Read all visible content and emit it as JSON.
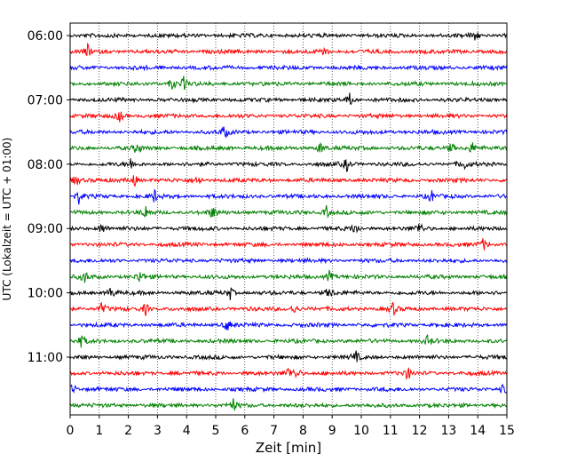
{
  "chart_data": {
    "type": "line",
    "title": "",
    "xlabel": "Zeit  [min]",
    "ylabel": "UTC (Lokalzeit = UTC + 01:00)",
    "xlim": [
      0,
      15
    ],
    "x_ticks": [
      "0",
      "1",
      "2",
      "3",
      "4",
      "5",
      "6",
      "7",
      "8",
      "9",
      "10",
      "11",
      "12",
      "13",
      "14",
      "15"
    ],
    "y_tick_labels": [
      "06:00",
      "07:00",
      "08:00",
      "09:00",
      "10:00",
      "11:00"
    ],
    "grid": "vertical dotted at each minute",
    "trace_interval_minutes": 15,
    "colors_cycle": [
      "#000000",
      "#ff0000",
      "#0000ff",
      "#008000"
    ],
    "series": [
      {
        "start": "06:00",
        "color": "#000000",
        "events_min": [
          13.9
        ]
      },
      {
        "start": "06:15",
        "color": "#ff0000",
        "events_min": [
          0.6,
          8.7
        ]
      },
      {
        "start": "06:30",
        "color": "#0000ff",
        "events_min": []
      },
      {
        "start": "06:45",
        "color": "#008000",
        "events_min": [
          3.5,
          3.9
        ]
      },
      {
        "start": "07:00",
        "color": "#000000",
        "events_min": [
          9.6
        ]
      },
      {
        "start": "07:15",
        "color": "#ff0000",
        "events_min": [
          1.7
        ]
      },
      {
        "start": "07:30",
        "color": "#0000ff",
        "events_min": [
          5.3
        ]
      },
      {
        "start": "07:45",
        "color": "#008000",
        "events_min": [
          2.3,
          8.6,
          13.1,
          13.8
        ]
      },
      {
        "start": "08:00",
        "color": "#000000",
        "events_min": [
          2.1,
          9.5,
          13.5
        ]
      },
      {
        "start": "08:15",
        "color": "#ff0000",
        "events_min": [
          0.2,
          2.2,
          4.4
        ]
      },
      {
        "start": "08:30",
        "color": "#0000ff",
        "events_min": [
          0.3,
          2.9,
          12.4
        ]
      },
      {
        "start": "08:45",
        "color": "#008000",
        "events_min": [
          2.6,
          4.9,
          8.8
        ]
      },
      {
        "start": "09:00",
        "color": "#000000",
        "events_min": [
          1.1,
          9.8,
          12.0
        ]
      },
      {
        "start": "09:15",
        "color": "#ff0000",
        "events_min": [
          14.2
        ]
      },
      {
        "start": "09:30",
        "color": "#0000ff",
        "events_min": []
      },
      {
        "start": "09:45",
        "color": "#008000",
        "events_min": [
          0.5,
          2.4,
          8.9
        ]
      },
      {
        "start": "10:00",
        "color": "#000000",
        "events_min": [
          1.4,
          5.5,
          8.9
        ]
      },
      {
        "start": "10:15",
        "color": "#ff0000",
        "events_min": [
          1.1,
          2.6,
          7.7,
          11.1
        ]
      },
      {
        "start": "10:30",
        "color": "#0000ff",
        "events_min": [
          5.4
        ]
      },
      {
        "start": "10:45",
        "color": "#008000",
        "events_min": [
          0.4,
          12.3
        ]
      },
      {
        "start": "11:00",
        "color": "#000000",
        "events_min": [
          9.8
        ]
      },
      {
        "start": "11:15",
        "color": "#ff0000",
        "events_min": [
          7.5,
          7.8,
          11.6
        ]
      },
      {
        "start": "11:30",
        "color": "#0000ff",
        "events_min": [
          0.1,
          14.9
        ]
      },
      {
        "start": "11:45",
        "color": "#008000",
        "events_min": [
          5.6
        ]
      }
    ]
  }
}
